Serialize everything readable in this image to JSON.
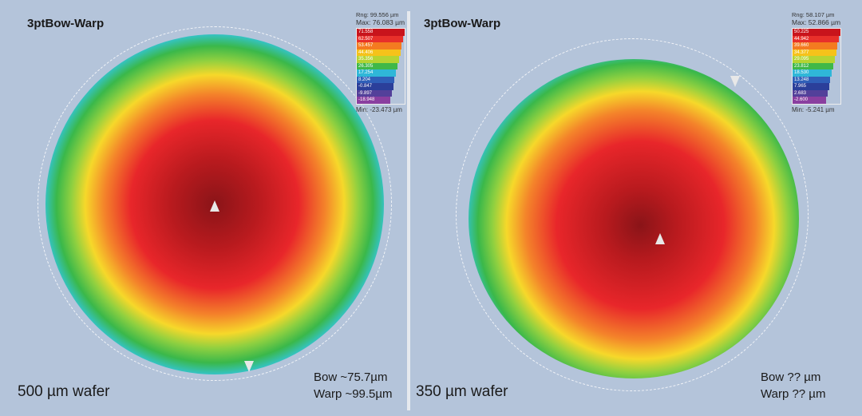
{
  "left": {
    "title": "3ptBow-Warp",
    "legend": {
      "rng": "Rng: 99.556 µm",
      "max": "Max: 76.083 µm",
      "min": "Min: -23.473 µm",
      "levels": [
        "71.558",
        "62.507",
        "53.457",
        "44.406",
        "35.356",
        "26.305",
        "17.254",
        "8.204",
        "-0.847",
        "-9.897",
        "-18.948"
      ]
    },
    "wafer_label": "500 µm wafer",
    "bow": "Bow ~75.7µm",
    "warp": "Warp ~99.5µm"
  },
  "right": {
    "title": "3ptBow-Warp",
    "legend": {
      "rng": "Rng: 58.107 µm",
      "max": "Max: 52.866 µm",
      "min": "Min: -5.241 µm",
      "levels": [
        "50.225",
        "44.942",
        "39.660",
        "34.377",
        "29.095",
        "23.812",
        "18.530",
        "13.248",
        "7.965",
        "2.683",
        "-2.600"
      ]
    },
    "wafer_label": "350 µm wafer",
    "bow": "Bow ?? µm",
    "warp": "Warp ?? µm"
  },
  "colors": {
    "scale": [
      "#c8141c",
      "#e8302a",
      "#f47b20",
      "#f6c21a",
      "#b6d432",
      "#3fb848",
      "#2fb7d8",
      "#2f5fb8",
      "#2b3f9a",
      "#53409a",
      "#8a3fa0"
    ],
    "background": "#b4c4da"
  }
}
